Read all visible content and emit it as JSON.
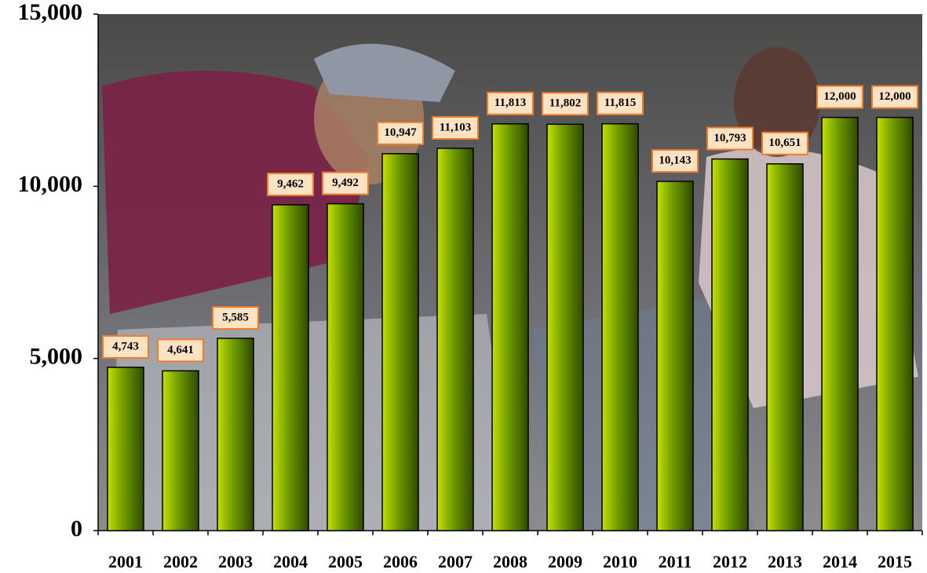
{
  "chart_data": {
    "type": "bar",
    "categories": [
      "2001",
      "2002",
      "2003",
      "2004",
      "2005",
      "2006",
      "2007",
      "2008",
      "2009",
      "2010",
      "2011",
      "2012",
      "2013",
      "2014",
      "2015"
    ],
    "values": [
      4743,
      4641,
      5585,
      9462,
      9492,
      10947,
      11103,
      11813,
      11802,
      11815,
      10143,
      10793,
      10651,
      12000,
      12000
    ],
    "value_labels": [
      "4,743",
      "4,641",
      "5,585",
      "9,462",
      "9,492",
      "10,947",
      "11,103",
      "11,813",
      "11,802",
      "11,815",
      "10,143",
      "10,793",
      "10,651",
      "12,000",
      "12,000"
    ],
    "color": "#6e9a00",
    "ylim": [
      0,
      15000
    ],
    "yticks": [
      0,
      {
        "value": 5000,
        "label": "5,000"
      },
      {
        "value": 10000,
        "label": "10,000"
      },
      {
        "value": 15000,
        "label": "15,000"
      }
    ],
    "grid": false
  }
}
